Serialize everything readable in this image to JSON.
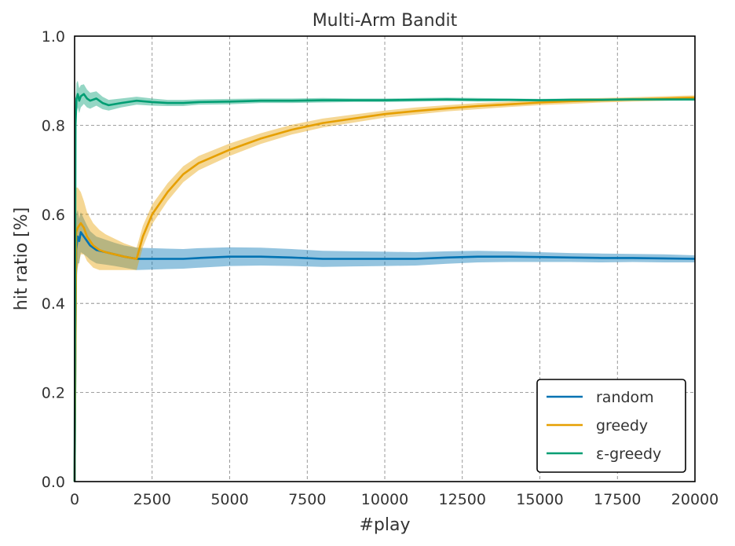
{
  "chart_data": {
    "type": "line",
    "title": "Multi-Arm Bandit",
    "xlabel": "#play",
    "ylabel": "hit ratio [%]",
    "xlim": [
      0,
      20000
    ],
    "ylim": [
      0.0,
      1.0
    ],
    "xticks": [
      0,
      2500,
      5000,
      7500,
      10000,
      12500,
      15000,
      17500,
      20000
    ],
    "xtick_labels": [
      "0",
      "2500",
      "5000",
      "7500",
      "10000",
      "12500",
      "15000",
      "17500",
      "20000"
    ],
    "yticks": [
      0.0,
      0.2,
      0.4,
      0.6,
      0.8,
      1.0
    ],
    "ytick_labels": [
      "0.0",
      "0.2",
      "0.4",
      "0.6",
      "0.8",
      "1.0"
    ],
    "grid": true,
    "legend_position": "bottom-right",
    "series": [
      {
        "name": "random",
        "color": "#0072b2",
        "x": [
          0,
          50,
          100,
          150,
          200,
          300,
          400,
          500,
          700,
          1000,
          1300,
          1600,
          2000,
          2500,
          3000,
          3500,
          4000,
          5000,
          6000,
          7000,
          8000,
          9000,
          10000,
          11000,
          12000,
          13000,
          14000,
          15000,
          16000,
          17000,
          18000,
          19000,
          20000
        ],
        "values": [
          0.0,
          0.52,
          0.55,
          0.54,
          0.56,
          0.55,
          0.54,
          0.53,
          0.52,
          0.515,
          0.51,
          0.505,
          0.5,
          0.5,
          0.5,
          0.5,
          0.502,
          0.505,
          0.505,
          0.503,
          0.5,
          0.5,
          0.5,
          0.5,
          0.503,
          0.505,
          0.505,
          0.504,
          0.503,
          0.502,
          0.502,
          0.501,
          0.5
        ],
        "band": [
          0.0,
          0.08,
          0.06,
          0.05,
          0.045,
          0.04,
          0.035,
          0.032,
          0.03,
          0.028,
          0.026,
          0.025,
          0.025,
          0.024,
          0.023,
          0.022,
          0.022,
          0.021,
          0.02,
          0.019,
          0.018,
          0.017,
          0.016,
          0.015,
          0.014,
          0.013,
          0.012,
          0.011,
          0.01,
          0.01,
          0.009,
          0.009,
          0.008
        ]
      },
      {
        "name": "greedy",
        "color": "#e69f00",
        "x": [
          0,
          50,
          100,
          200,
          300,
          400,
          600,
          800,
          1000,
          1300,
          1600,
          2000,
          2200,
          2500,
          3000,
          3500,
          4000,
          5000,
          6000,
          7000,
          8000,
          9000,
          10000,
          11000,
          12000,
          13000,
          14000,
          15000,
          16000,
          17000,
          18000,
          19000,
          20000
        ],
        "values": [
          0.0,
          0.56,
          0.57,
          0.58,
          0.57,
          0.55,
          0.53,
          0.52,
          0.515,
          0.51,
          0.505,
          0.5,
          0.55,
          0.6,
          0.65,
          0.69,
          0.715,
          0.745,
          0.77,
          0.79,
          0.805,
          0.815,
          0.825,
          0.832,
          0.838,
          0.843,
          0.847,
          0.851,
          0.854,
          0.856,
          0.858,
          0.86,
          0.862
        ],
        "band": [
          0.0,
          0.1,
          0.09,
          0.07,
          0.06,
          0.055,
          0.05,
          0.045,
          0.04,
          0.035,
          0.03,
          0.025,
          0.024,
          0.022,
          0.02,
          0.018,
          0.016,
          0.014,
          0.012,
          0.011,
          0.01,
          0.009,
          0.008,
          0.008,
          0.007,
          0.007,
          0.006,
          0.006,
          0.006,
          0.005,
          0.005,
          0.005,
          0.005
        ]
      },
      {
        "name": "ε-greedy",
        "color": "#009e73",
        "x": [
          0,
          30,
          60,
          100,
          150,
          200,
          300,
          400,
          500,
          700,
          900,
          1100,
          1500,
          2000,
          2500,
          3000,
          3500,
          4000,
          5000,
          6000,
          7000,
          8000,
          9000,
          10000,
          11000,
          12000,
          13000,
          14000,
          15000,
          16000,
          17000,
          18000,
          19000,
          20000
        ],
        "values": [
          0.0,
          0.8,
          0.86,
          0.87,
          0.855,
          0.865,
          0.87,
          0.86,
          0.855,
          0.86,
          0.85,
          0.845,
          0.85,
          0.855,
          0.852,
          0.85,
          0.85,
          0.852,
          0.853,
          0.855,
          0.855,
          0.856,
          0.856,
          0.856,
          0.857,
          0.858,
          0.857,
          0.857,
          0.856,
          0.857,
          0.857,
          0.858,
          0.858,
          0.858
        ],
        "band": [
          0.0,
          0.05,
          0.035,
          0.03,
          0.028,
          0.025,
          0.022,
          0.02,
          0.018,
          0.016,
          0.014,
          0.012,
          0.01,
          0.009,
          0.008,
          0.007,
          0.007,
          0.006,
          0.006,
          0.005,
          0.005,
          0.005,
          0.004,
          0.004,
          0.004,
          0.004,
          0.004,
          0.003,
          0.003,
          0.003,
          0.003,
          0.003,
          0.003,
          0.003
        ]
      }
    ]
  }
}
